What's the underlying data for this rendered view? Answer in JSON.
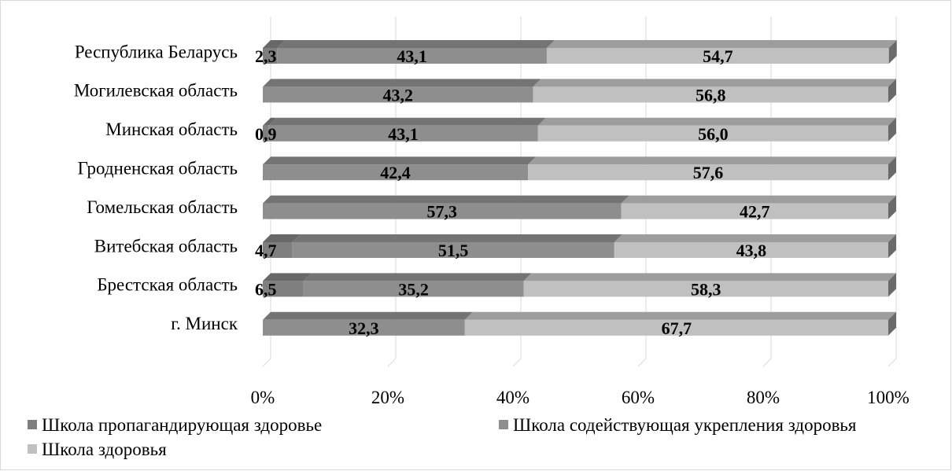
{
  "chart_data": {
    "type": "bar",
    "orientation": "horizontal",
    "stacked": "percent",
    "title": "",
    "xlabel": "",
    "ylabel": "",
    "xlim": [
      0,
      100
    ],
    "x_ticks": [
      "0%",
      "20%",
      "40%",
      "60%",
      "80%",
      "100%"
    ],
    "grid": true,
    "legend_position": "bottom",
    "categories": [
      "Республика Беларусь",
      "Могилевская область",
      "Минская область",
      "Гродненская область",
      "Гомельская  область",
      "Витебская область",
      "Брестская область",
      "г. Минск"
    ],
    "series": [
      {
        "name": "Школа пропагандирующая здоровье",
        "color": "#7f7f7f",
        "values": [
          2.3,
          0,
          0.9,
          0,
          0,
          4.7,
          6.5,
          0
        ],
        "labels": [
          "2,3",
          "",
          "0,9",
          "",
          "",
          "4,7",
          "6,5",
          ""
        ]
      },
      {
        "name": "Школа содействующая укрепления здоровья",
        "color": "#8e8e8e",
        "values": [
          43.1,
          43.2,
          43.1,
          42.4,
          57.3,
          51.5,
          35.2,
          32.3
        ],
        "labels": [
          "43,1",
          "43,2",
          "43,1",
          "42,4",
          "57,3",
          "51,5",
          "35,2",
          "32,3"
        ]
      },
      {
        "name": "Школа здоровья",
        "color": "#c0c0c0",
        "values": [
          54.7,
          56.8,
          56.0,
          57.6,
          42.7,
          43.8,
          58.3,
          67.7
        ],
        "labels": [
          "54,7",
          "56,8",
          "56,0",
          "57,6",
          "42,7",
          "43,8",
          "58,3",
          "67,7"
        ]
      }
    ]
  }
}
